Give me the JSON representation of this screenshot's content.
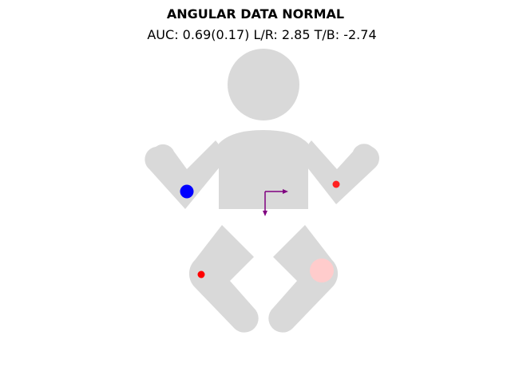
{
  "figure": {
    "title": "ANGULAR DATA NORMAL",
    "subtitle": "AUC: 0.69(0.17) L/R: 2.85 T/B: -2.74"
  },
  "colors": {
    "body": "#d9d9d9",
    "arrow": "#800080",
    "marker_blue": "#0000ff",
    "marker_red": "#ff2020",
    "marker_pink": "#ffcccc"
  }
}
